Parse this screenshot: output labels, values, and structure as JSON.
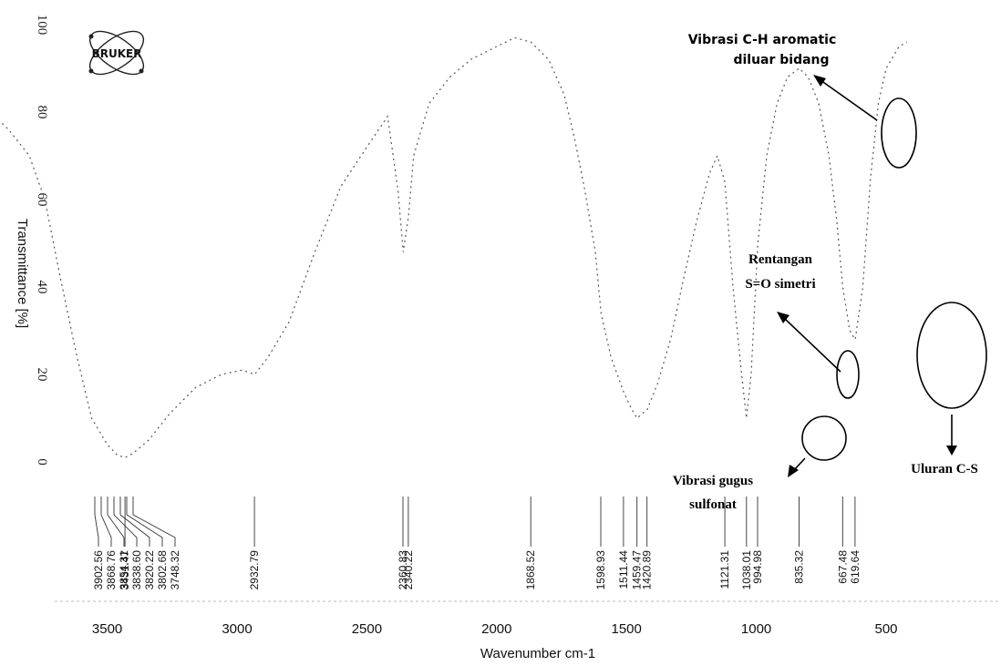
{
  "chart_data": {
    "type": "line",
    "title": "",
    "xlabel": "Wavenumber cm-1",
    "ylabel": "Transmittance [%]",
    "xlim": [
      4000,
      400
    ],
    "ylim": [
      0,
      100
    ],
    "x_ticks": [
      3500,
      3000,
      2500,
      2000,
      1500,
      1000,
      500
    ],
    "y_ticks": [
      0,
      20,
      40,
      60,
      80,
      100
    ],
    "logo_text": "BRUKER",
    "series": [
      {
        "x": [
          3950,
          3880,
          3800,
          3740,
          3680,
          3620,
          3560,
          3500,
          3460,
          3431,
          3400,
          3340,
          3260,
          3160,
          3060,
          2980,
          2932,
          2880,
          2800,
          2700,
          2600,
          2500,
          2420,
          2380,
          2360,
          2340,
          2320,
          2260,
          2180,
          2100,
          2000,
          1930,
          1868,
          1800,
          1740,
          1700,
          1660,
          1620,
          1598,
          1560,
          1511,
          1480,
          1459,
          1440,
          1420,
          1380,
          1330,
          1280,
          1230,
          1180,
          1150,
          1121,
          1090,
          1060,
          1038,
          1020,
          994,
          960,
          920,
          880,
          835,
          800,
          760,
          720,
          690,
          667,
          640,
          619,
          590,
          560,
          530,
          500,
          450,
          420
        ],
        "y": [
          80,
          76,
          70,
          60,
          42,
          25,
          10,
          4,
          1.5,
          1,
          2,
          5,
          11,
          17,
          20,
          21,
          20,
          24,
          32,
          48,
          63,
          72,
          79,
          62,
          48,
          56,
          70,
          82,
          88,
          92,
          95,
          97,
          96,
          92,
          84,
          74,
          62,
          48,
          34,
          24,
          16,
          12,
          10,
          11,
          12,
          18,
          28,
          42,
          55,
          66,
          70,
          64,
          40,
          22,
          10,
          20,
          50,
          70,
          82,
          88,
          90,
          88,
          82,
          70,
          55,
          40,
          30,
          28,
          40,
          65,
          82,
          90,
          95,
          96
        ]
      }
    ],
    "peak_labels": [
      "3902.56",
      "3868.76",
      "3854.31",
      "3838.60",
      "3820.22",
      "3802.68",
      "3748.32",
      "3431.47",
      "2932.79",
      "2360.83",
      "2340.22",
      "1868.52",
      "1598.93",
      "1511.44",
      "1459.47",
      "1420.89",
      "1121.31",
      "1038.01",
      "994.98",
      "835.32",
      "667.48",
      "619.64"
    ],
    "annotations": [
      {
        "text": "Vibrasi C-H  aromatic",
        "text2": "diluar bidang"
      },
      {
        "text": "Rentangan",
        "text2": "S=O simetri"
      },
      {
        "text": "Vibrasi gugus",
        "text2": "sulfonat"
      },
      {
        "text": "Uluran C-S",
        "text2": ""
      }
    ]
  }
}
